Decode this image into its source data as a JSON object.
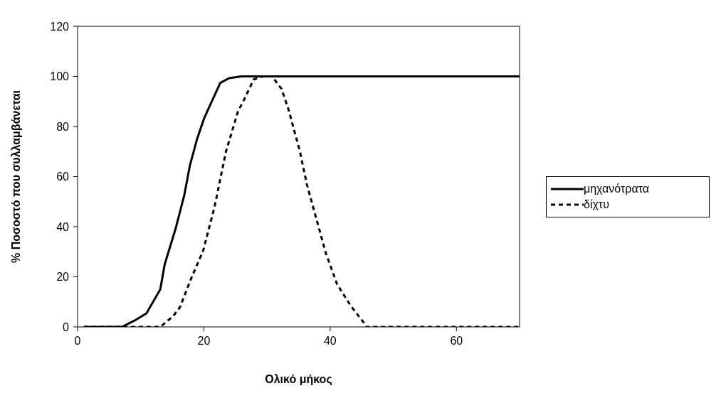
{
  "chart_data": {
    "type": "line",
    "xlabel": "Ολικό μήκος",
    "ylabel": "% Ποσοστό που συλλαμβάνεται",
    "xlim": [
      0,
      70
    ],
    "xticks": [
      0,
      20,
      40,
      60
    ],
    "ylim": [
      0,
      120
    ],
    "yticks": [
      0,
      20,
      40,
      60,
      80,
      100,
      120
    ],
    "grid": false,
    "legend": "right",
    "marker": "none",
    "series": [
      {
        "name": "μηχανότρατα",
        "color": "#000000",
        "line_style": "solid",
        "x": [
          1,
          7,
          9,
          10.9,
          13.1,
          13.8,
          15.5,
          16.9,
          17.8,
          18.9,
          20,
          21,
          22.6,
          24,
          25.9,
          30,
          40,
          50,
          60,
          70
        ],
        "values": [
          0,
          0,
          2.5,
          5.4,
          15,
          25,
          39,
          52.6,
          64.6,
          74.8,
          83,
          88.6,
          97.4,
          99.3,
          100,
          100,
          100,
          100,
          100,
          100
        ]
      },
      {
        "name": "δίχτυ",
        "color": "#000000",
        "line_style": "dashed",
        "x": [
          1,
          13.1,
          15.1,
          16.2,
          18,
          19.9,
          21.7,
          23.5,
          25.4,
          26.5,
          27.9,
          29.3,
          30.8,
          32.3,
          33.4,
          35.2,
          36.3,
          39.3,
          41.1,
          43.3,
          45.3,
          45.7,
          50,
          60,
          70
        ],
        "values": [
          0,
          0,
          4.2,
          7.8,
          19.4,
          30.5,
          48,
          70,
          86,
          91.4,
          98.8,
          100,
          100,
          95,
          86.8,
          70.2,
          57,
          29.6,
          17,
          8.3,
          1.8,
          0,
          0,
          0,
          0
        ]
      }
    ]
  }
}
